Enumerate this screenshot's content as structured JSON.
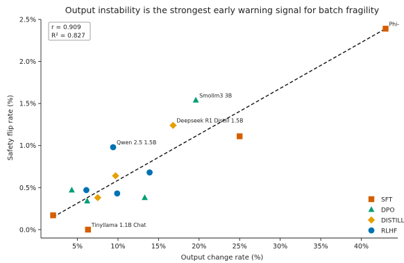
{
  "chart_data": {
    "type": "scatter",
    "title": "Output instability is the strongest early warning signal for batch fragility",
    "xlabel": "Output change rate (%)",
    "ylabel": "Safety flip rate (%)",
    "xlim": [
      0.5,
      44.5
    ],
    "ylim": [
      -0.1,
      2.5
    ],
    "x_ticks": [
      5,
      10,
      15,
      20,
      25,
      30,
      35,
      40
    ],
    "x_tick_labels": [
      "5%",
      "10%",
      "15%",
      "20%",
      "25%",
      "30%",
      "35%",
      "40%"
    ],
    "y_ticks": [
      0,
      0.5,
      1.0,
      1.5,
      2.0,
      2.5
    ],
    "y_tick_labels": [
      "0.0%",
      "0.5%",
      "1.0%",
      "1.5%",
      "2.0%",
      "2.5%"
    ],
    "stats": {
      "r_text": "r = 0.909",
      "r2_text": "R² = 0.827"
    },
    "fit_line": {
      "x": [
        2,
        43
      ],
      "y": [
        0.15,
        2.39
      ]
    },
    "legend_position": "lower-right",
    "series": [
      {
        "name": "SFT",
        "color": "#d55e00",
        "marker": "square",
        "points": [
          {
            "x": 2.0,
            "y": 0.17,
            "label": ""
          },
          {
            "x": 6.3,
            "y": 0.0,
            "label": "Tinyllama 1.1B Chat"
          },
          {
            "x": 25.0,
            "y": 1.11,
            "label": ""
          },
          {
            "x": 43.0,
            "y": 2.39,
            "label": "Phi-"
          }
        ]
      },
      {
        "name": "DPO",
        "color": "#009e73",
        "marker": "triangle",
        "points": [
          {
            "x": 4.3,
            "y": 0.47,
            "label": ""
          },
          {
            "x": 6.2,
            "y": 0.34,
            "label": ""
          },
          {
            "x": 13.3,
            "y": 0.38,
            "label": ""
          },
          {
            "x": 19.6,
            "y": 1.54,
            "label": "Smollm3 3B"
          }
        ]
      },
      {
        "name": "DISTILLED",
        "color": "#e69f00",
        "marker": "diamond",
        "points": [
          {
            "x": 7.5,
            "y": 0.38,
            "label": ""
          },
          {
            "x": 9.7,
            "y": 0.64,
            "label": ""
          },
          {
            "x": 16.8,
            "y": 1.24,
            "label": "Deepseek R1 Distill 1.5B"
          }
        ]
      },
      {
        "name": "RLHF",
        "color": "#0072b2",
        "marker": "circle",
        "points": [
          {
            "x": 6.1,
            "y": 0.47,
            "label": ""
          },
          {
            "x": 9.4,
            "y": 0.98,
            "label": "Qwen 2.5 1.5B"
          },
          {
            "x": 9.9,
            "y": 0.43,
            "label": ""
          },
          {
            "x": 13.9,
            "y": 0.68,
            "label": ""
          }
        ]
      }
    ]
  }
}
